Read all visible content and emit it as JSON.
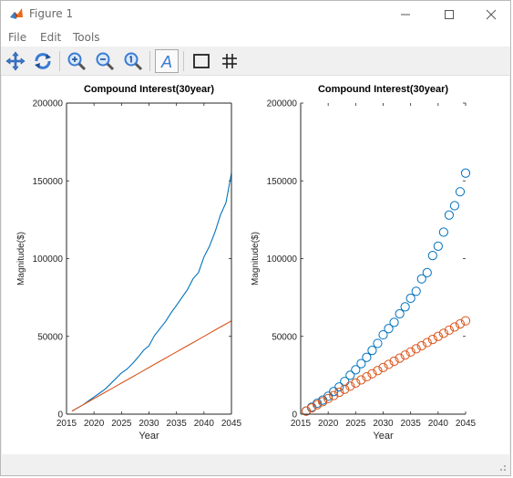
{
  "window": {
    "title": "Figure 1",
    "minimize_icon": "minimize-icon",
    "maximize_icon": "maximize-icon",
    "close_icon": "close-icon"
  },
  "menu": {
    "items": [
      {
        "label": "File"
      },
      {
        "label": "Edit"
      },
      {
        "label": "Tools"
      }
    ]
  },
  "toolbar": {
    "tools": [
      {
        "icon": "pan-icon"
      },
      {
        "icon": "rotate-icon"
      },
      {
        "icon": "zoom-in-icon"
      },
      {
        "icon": "zoom-out-icon"
      },
      {
        "icon": "zoom-reset-icon"
      },
      {
        "icon": "text-annotation-icon"
      },
      {
        "icon": "axes-box-icon"
      },
      {
        "icon": "grid-icon"
      }
    ]
  },
  "colors": {
    "compound": "#0072BD",
    "simple": "#D95319"
  },
  "chart_data": [
    {
      "type": "line",
      "title": "Compound Interest(30year)",
      "xlabel": "Year",
      "ylabel": "Magnitude($)",
      "xlim": [
        2015,
        2045
      ],
      "ylim": [
        0,
        200000
      ],
      "xticks": [
        "2015",
        "2020",
        "2025",
        "2030",
        "2035",
        "2040",
        "2045"
      ],
      "yticks": [
        "0",
        "50000",
        "100000",
        "150000",
        "200000"
      ],
      "x": [
        2016,
        2017,
        2018,
        2019,
        2020,
        2021,
        2022,
        2023,
        2024,
        2025,
        2026,
        2027,
        2028,
        2029,
        2030,
        2031,
        2032,
        2033,
        2034,
        2035,
        2036,
        2037,
        2038,
        2039,
        2040,
        2041,
        2042,
        2043,
        2044,
        2045
      ],
      "series": [
        {
          "values": [
            2000,
            4000,
            6000,
            8500,
            11000,
            13500,
            16000,
            19500,
            23000,
            26500,
            29000,
            32500,
            36500,
            41000,
            44000,
            50500,
            55000,
            59500,
            65000,
            70000,
            75000,
            80000,
            87000,
            91000,
            101000,
            108000,
            117000,
            128000,
            136000,
            155000
          ]
        },
        {
          "values": [
            2000,
            4000,
            6000,
            8000,
            10000,
            12000,
            14000,
            16000,
            18000,
            20000,
            22000,
            24000,
            26000,
            28000,
            30000,
            32000,
            34000,
            36000,
            38000,
            40000,
            42000,
            44000,
            46000,
            48000,
            50000,
            52000,
            54000,
            56000,
            58000,
            60000
          ]
        }
      ]
    },
    {
      "type": "scatter",
      "title": "Compound Interest(30year)",
      "xlabel": "Year",
      "ylabel": "Magnitude($)",
      "xlim": [
        2015,
        2045
      ],
      "ylim": [
        0,
        200000
      ],
      "xticks": [
        "2015",
        "2020",
        "2025",
        "2030",
        "2035",
        "2040",
        "2045"
      ],
      "yticks": [
        "0",
        "50000",
        "100000",
        "150000",
        "200000"
      ],
      "x": [
        2016,
        2017,
        2018,
        2019,
        2020,
        2021,
        2022,
        2023,
        2024,
        2025,
        2026,
        2027,
        2028,
        2029,
        2030,
        2031,
        2032,
        2033,
        2034,
        2035,
        2036,
        2037,
        2038,
        2039,
        2040,
        2041,
        2042,
        2043,
        2044,
        2045
      ],
      "series": [
        {
          "values": [
            2000,
            4500,
            7000,
            9000,
            11500,
            14500,
            17500,
            21000,
            25000,
            28500,
            32500,
            36500,
            41000,
            45500,
            51000,
            55000,
            59000,
            64500,
            69000,
            74500,
            79000,
            87000,
            91000,
            102000,
            108000,
            117000,
            128000,
            134000,
            143000,
            155000
          ]
        },
        {
          "values": [
            2000,
            4000,
            6000,
            8000,
            10000,
            12000,
            14000,
            16000,
            18000,
            20000,
            22000,
            24000,
            26000,
            28000,
            30000,
            32000,
            34000,
            36000,
            38000,
            40000,
            42000,
            44000,
            46000,
            48000,
            50000,
            52000,
            54000,
            56000,
            58000,
            60000
          ]
        }
      ]
    }
  ]
}
